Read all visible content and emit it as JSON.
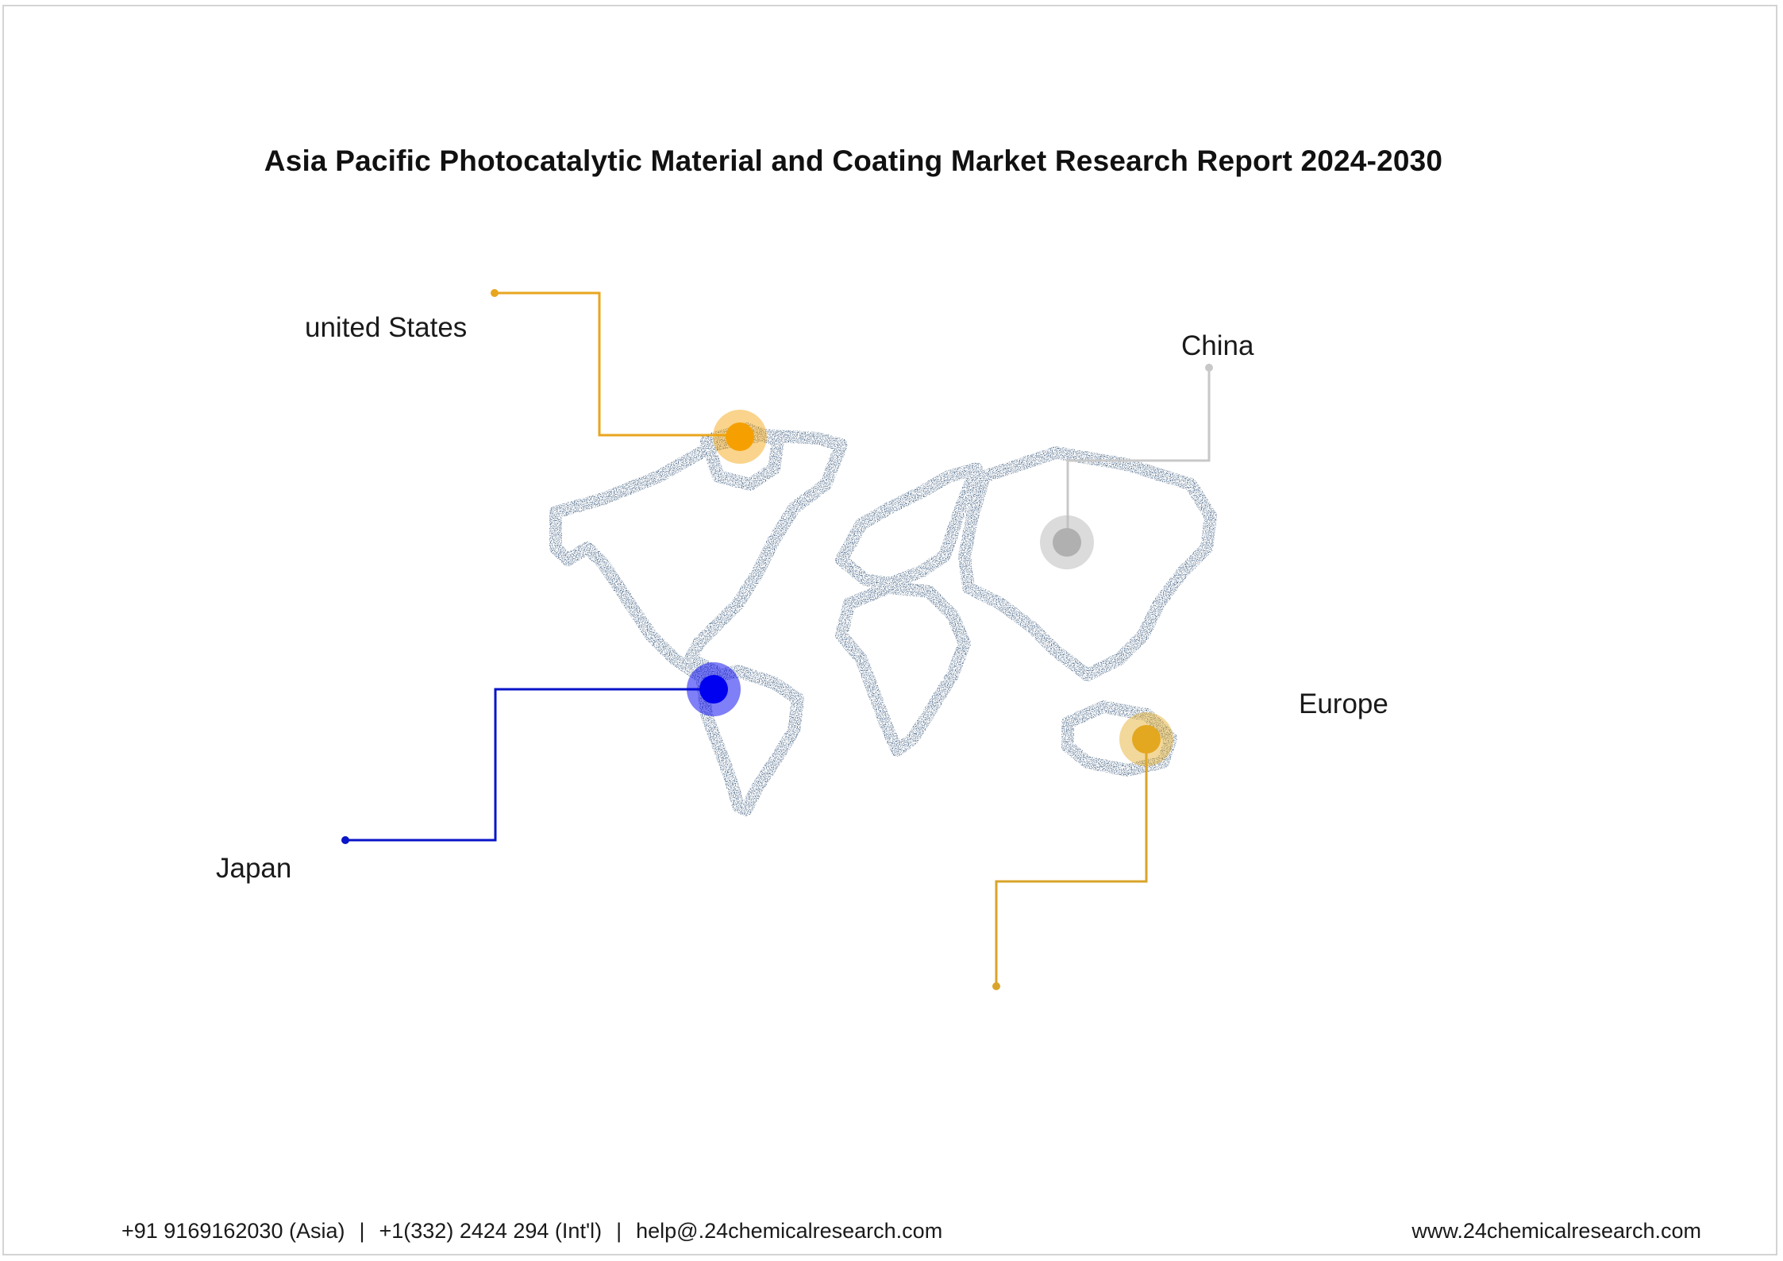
{
  "title": "Asia Pacific Photocatalytic Material and Coating Market Research Report 2024-2030",
  "markers": [
    {
      "name": "united States",
      "color": "#F5A000",
      "line_color": "#E8A61E"
    },
    {
      "name": "China",
      "color": "#BDBDBD",
      "line_color": "#C8C8C8"
    },
    {
      "name": "Europe",
      "color": "#E3A820",
      "line_color": "#D9A42A"
    },
    {
      "name": "Japan",
      "color": "#0000F0",
      "line_color": "#0A14C8"
    }
  ],
  "footer": {
    "phone_asia": "+91 9169162030 (Asia)",
    "phone_intl": "+1(332) 2424 294 (Int'l)",
    "email": "help@.24chemicalresearch.com",
    "separator": "|",
    "website": "www.24chemicalresearch.com"
  }
}
